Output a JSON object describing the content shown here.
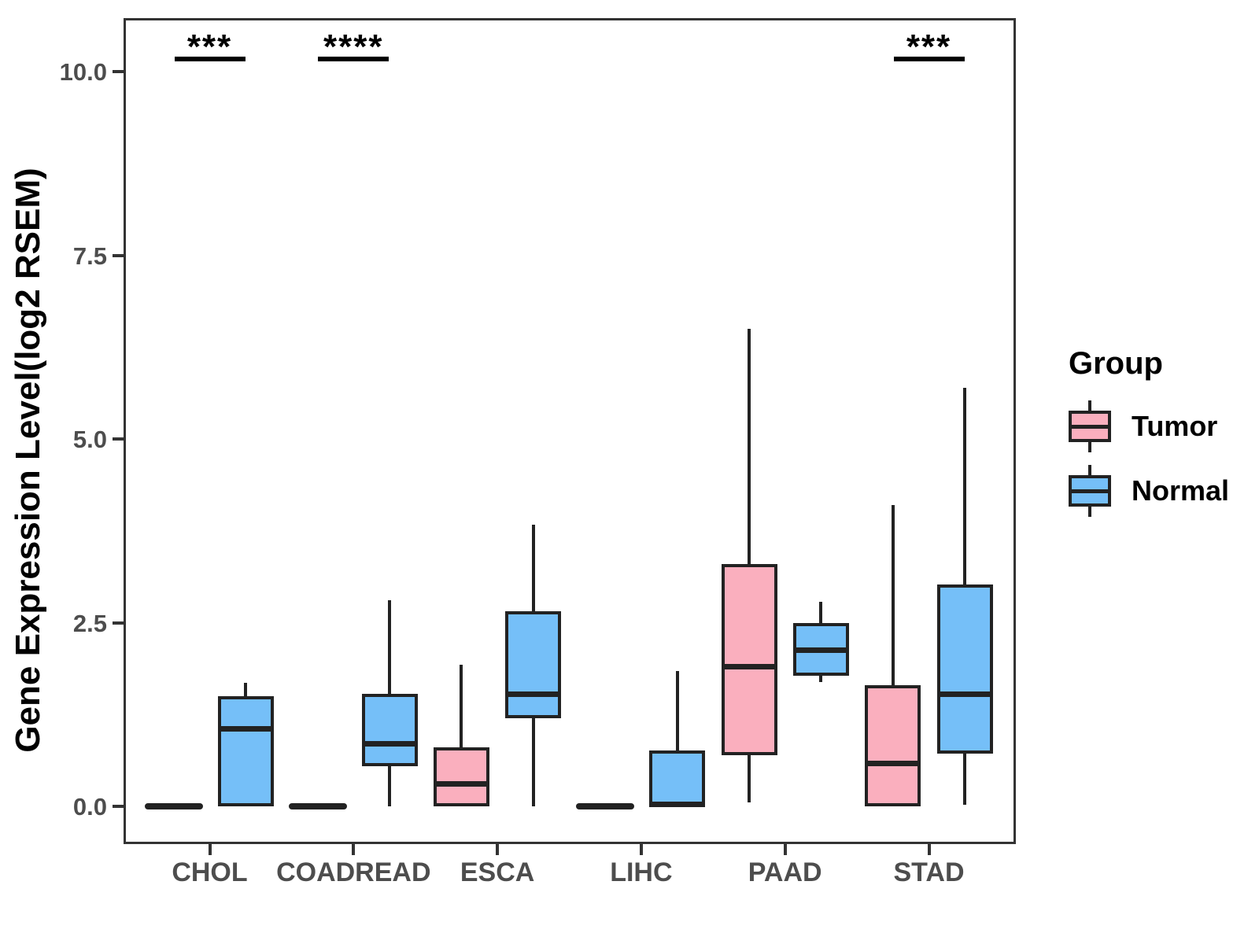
{
  "legend": {
    "title": "Group",
    "items": [
      {
        "label": "Tumor",
        "color": "#FAAFBE"
      },
      {
        "label": "Normal",
        "color": "#75BFF8"
      }
    ]
  },
  "chart_data": {
    "type": "boxplot",
    "title": "",
    "xlabel": "",
    "ylabel": "Gene Expression Level(log2 RSEM)",
    "categories": [
      "CHOL",
      "COADREAD",
      "ESCA",
      "LIHC",
      "PAAD",
      "STAD"
    ],
    "groups": [
      "Tumor",
      "Normal"
    ],
    "group_colors": {
      "Tumor": "#FAAFBE",
      "Normal": "#75BFF8"
    },
    "yticks": [
      "0.0",
      "2.5",
      "5.0",
      "7.5",
      "10.0"
    ],
    "ytick_values": [
      0,
      2.5,
      5,
      7.5,
      10
    ],
    "ylim": [
      -0.5,
      10.7
    ],
    "grid": false,
    "legend_position": "right",
    "boxes": [
      {
        "category": "CHOL",
        "group": "Tumor",
        "min": 0,
        "q1": 0,
        "median": 0,
        "q3": 0,
        "max": 0
      },
      {
        "category": "CHOL",
        "group": "Normal",
        "min": 0,
        "q1": 0,
        "median": 1.05,
        "q3": 1.5,
        "max": 1.68
      },
      {
        "category": "COADREAD",
        "group": "Tumor",
        "min": 0,
        "q1": 0,
        "median": 0,
        "q3": 0,
        "max": 0
      },
      {
        "category": "COADREAD",
        "group": "Normal",
        "min": 0,
        "q1": 0.55,
        "median": 0.85,
        "q3": 1.53,
        "max": 2.8
      },
      {
        "category": "ESCA",
        "group": "Tumor",
        "min": 0,
        "q1": 0,
        "median": 0.31,
        "q3": 0.8,
        "max": 1.93
      },
      {
        "category": "ESCA",
        "group": "Normal",
        "min": 0,
        "q1": 1.2,
        "median": 1.53,
        "q3": 2.66,
        "max": 3.83
      },
      {
        "category": "LIHC",
        "group": "Tumor",
        "min": 0,
        "q1": 0,
        "median": 0,
        "q3": 0,
        "max": 0
      },
      {
        "category": "LIHC",
        "group": "Normal",
        "min": 0,
        "q1": 0,
        "median": 0.03,
        "q3": 0.76,
        "max": 1.84
      },
      {
        "category": "PAAD",
        "group": "Tumor",
        "min": 0.05,
        "q1": 0.7,
        "median": 1.9,
        "q3": 3.3,
        "max": 6.5
      },
      {
        "category": "PAAD",
        "group": "Normal",
        "min": 1.69,
        "q1": 1.78,
        "median": 2.12,
        "q3": 2.5,
        "max": 2.78
      },
      {
        "category": "STAD",
        "group": "Tumor",
        "min": 0,
        "q1": 0,
        "median": 0.58,
        "q3": 1.65,
        "max": 4.1
      },
      {
        "category": "STAD",
        "group": "Normal",
        "min": 0.02,
        "q1": 0.72,
        "median": 1.53,
        "q3": 3.02,
        "max": 5.7
      }
    ],
    "significance": [
      {
        "category": "CHOL",
        "label": "***"
      },
      {
        "category": "COADREAD",
        "label": "****"
      },
      {
        "category": "STAD",
        "label": "***"
      }
    ]
  }
}
